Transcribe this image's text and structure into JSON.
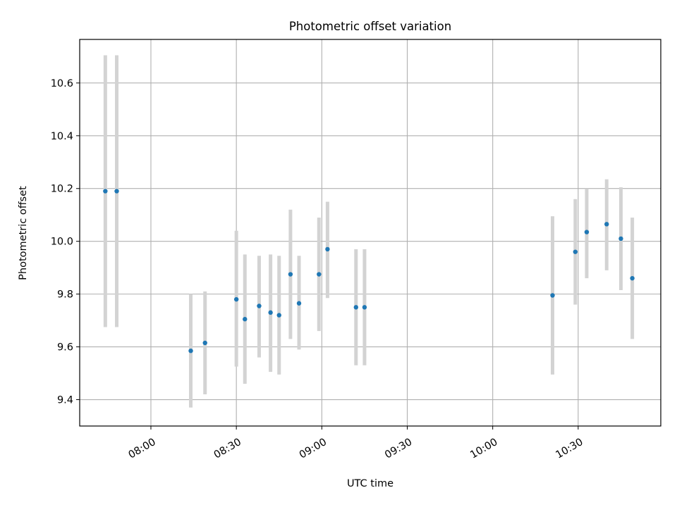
{
  "chart_data": {
    "type": "scatter",
    "title": "Photometric offset variation",
    "xlabel": "UTC time",
    "ylabel": "Photometric offset",
    "x_ticks": [
      "08:00",
      "08:30",
      "09:00",
      "09:30",
      "10:00",
      "10:30"
    ],
    "y_ticks": [
      "9.4",
      "9.6",
      "9.8",
      "10.0",
      "10.2",
      "10.4",
      "10.6"
    ],
    "xlim": [
      "07:35",
      "10:59"
    ],
    "ylim": [
      9.3,
      10.765
    ],
    "grid": true,
    "marker_color": "#1f77b4",
    "errorbar_color": "#d3d3d3",
    "points": [
      {
        "x": "07:44",
        "y": 10.19,
        "yerr_low": 9.675,
        "yerr_high": 10.705
      },
      {
        "x": "07:48",
        "y": 10.19,
        "yerr_low": 9.675,
        "yerr_high": 10.705
      },
      {
        "x": "08:14",
        "y": 9.585,
        "yerr_low": 9.37,
        "yerr_high": 9.8
      },
      {
        "x": "08:19",
        "y": 9.615,
        "yerr_low": 9.42,
        "yerr_high": 9.81
      },
      {
        "x": "08:30",
        "y": 9.78,
        "yerr_low": 9.525,
        "yerr_high": 10.04
      },
      {
        "x": "08:33",
        "y": 9.705,
        "yerr_low": 9.46,
        "yerr_high": 9.95
      },
      {
        "x": "08:38",
        "y": 9.755,
        "yerr_low": 9.56,
        "yerr_high": 9.945
      },
      {
        "x": "08:42",
        "y": 9.73,
        "yerr_low": 9.505,
        "yerr_high": 9.95
      },
      {
        "x": "08:45",
        "y": 9.72,
        "yerr_low": 9.495,
        "yerr_high": 9.945
      },
      {
        "x": "08:49",
        "y": 9.875,
        "yerr_low": 9.63,
        "yerr_high": 10.12
      },
      {
        "x": "08:52",
        "y": 9.765,
        "yerr_low": 9.59,
        "yerr_high": 9.945
      },
      {
        "x": "08:59",
        "y": 9.875,
        "yerr_low": 9.66,
        "yerr_high": 10.09
      },
      {
        "x": "09:02",
        "y": 9.97,
        "yerr_low": 9.785,
        "yerr_high": 10.15
      },
      {
        "x": "09:12",
        "y": 9.75,
        "yerr_low": 9.53,
        "yerr_high": 9.97
      },
      {
        "x": "09:15",
        "y": 9.75,
        "yerr_low": 9.53,
        "yerr_high": 9.97
      },
      {
        "x": "10:21",
        "y": 9.795,
        "yerr_low": 9.495,
        "yerr_high": 10.095
      },
      {
        "x": "10:29",
        "y": 9.96,
        "yerr_low": 9.76,
        "yerr_high": 10.16
      },
      {
        "x": "10:33",
        "y": 10.035,
        "yerr_low": 9.86,
        "yerr_high": 10.2
      },
      {
        "x": "10:40",
        "y": 10.065,
        "yerr_low": 9.89,
        "yerr_high": 10.235
      },
      {
        "x": "10:45",
        "y": 10.01,
        "yerr_low": 9.815,
        "yerr_high": 10.205
      },
      {
        "x": "10:49",
        "y": 9.86,
        "yerr_low": 9.63,
        "yerr_high": 10.09
      }
    ]
  }
}
